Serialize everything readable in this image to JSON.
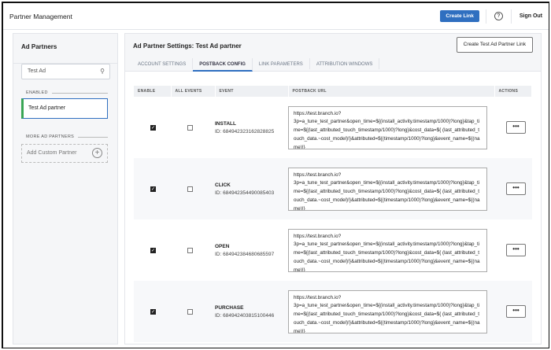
{
  "header": {
    "title": "Partner Management",
    "create_link": "Create Link",
    "help_icon": "question-circle-icon",
    "sign_out": "Sign Out"
  },
  "sidebar": {
    "title": "Ad Partners",
    "search_value": "Test Ad",
    "enabled_label": "ENABLED",
    "enabled_partner": "Test Ad partner",
    "more_label": "MORE AD PARTNERS",
    "add_custom": "Add Custom Partner"
  },
  "main": {
    "title": "Ad Partner Settings: Test Ad partner",
    "create_test_link": "Create Test Ad Partner Link",
    "tabs": [
      {
        "label": "ACCOUNT SETTINGS"
      },
      {
        "label": "POSTBACK CONFIG",
        "active": true
      },
      {
        "label": "LINK PARAMETERS"
      },
      {
        "label": "ATTRIBUTION WINDOWS"
      }
    ],
    "columns": [
      "ENABLE",
      "ALL EVENTS",
      "EVENT",
      "POSTBACK URL",
      "ACTIONS"
    ],
    "rows": [
      {
        "enable": true,
        "all_events": false,
        "event": "INSTALL",
        "id": "ID: 684942323162828825",
        "url": "https://test.branch.io?\n3p=a_tune_test_partner&open_time=${(install_activity.timestamp/1000)?long}&tap_time=${(last_attributed_touch_timestamp/1000)?long}&cost_data=${ (last_attributed_touch_data.~cost_model)!}&attributed=${(timestamp/1000)?long}&event_name=${(name)!}",
        "actions": "•••"
      },
      {
        "enable": true,
        "all_events": false,
        "event": "CLICK",
        "id": "ID: 684942354490085403",
        "url": "https://test.branch.io?\n3p=a_tune_test_partner&open_time=${(install_activity.timestamp/1000)?long}&tap_time=${(last_attributed_touch_timestamp/1000)?long}&cost_data=${ (last_attributed_touch_data.~cost_model)!}&attributed=${(timestamp/1000)?long}&event_name=${(name)!}",
        "actions": "•••"
      },
      {
        "enable": true,
        "all_events": false,
        "event": "OPEN",
        "id": "ID: 684942384680685597",
        "url": "https://test.branch.io?\n3p=a_tune_test_partner&open_time=${(install_activity.timestamp/1000)?long}&tap_time=${(last_attributed_touch_timestamp/1000)?long}&cost_data=${ (last_attributed_touch_data.~cost_model)!}&attributed=${(timestamp/1000)?long}&event_name=${(name)!}",
        "actions": "•••"
      },
      {
        "enable": true,
        "all_events": false,
        "event": "PURCHASE",
        "id": "ID: 684942403815100446",
        "url": "https://test.branch.io?\n3p=a_tune_test_partner&open_time=${(install_activity.timestamp/1000)?long}&tap_time=${(last_attributed_touch_timestamp/1000)?long}&cost_data=${ (last_attributed_touch_data.~cost_model)!}&attributed=${(timestamp/1000)?long}&event_name=${(name)!}",
        "actions": "•••"
      }
    ]
  },
  "colors": {
    "primary": "#2f6fc0",
    "enabled_accent": "#3aa655"
  }
}
